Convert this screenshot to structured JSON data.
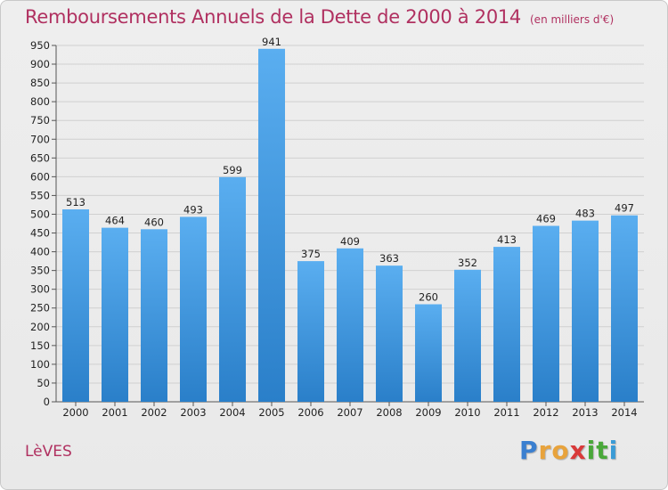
{
  "title": "Remboursements Annuels de la Dette de 2000 à 2014",
  "subtitle": "(en milliers d'€)",
  "place": "LèVES",
  "brand": {
    "letters": [
      "P",
      "r",
      "o",
      "x",
      "i",
      "t",
      "i"
    ],
    "colors": [
      "#3a7fd0",
      "#e8a33c",
      "#e8a33c",
      "#d93a3a",
      "#4aa83a",
      "#4aa83a",
      "#3a9bd6"
    ]
  },
  "colors": {
    "bar_top": "#5aaef0",
    "bar_bottom": "#2a7fc9",
    "title": "#b03060"
  },
  "chart_data": {
    "type": "bar",
    "categories": [
      "2000",
      "2001",
      "2002",
      "2003",
      "2004",
      "2005",
      "2006",
      "2007",
      "2008",
      "2009",
      "2010",
      "2011",
      "2012",
      "2013",
      "2014"
    ],
    "values": [
      513,
      464,
      460,
      493,
      599,
      941,
      375,
      409,
      363,
      260,
      352,
      413,
      469,
      483,
      497
    ],
    "ylim": [
      0,
      950
    ],
    "ytick_step": 50,
    "grid": true,
    "legend": "none"
  }
}
